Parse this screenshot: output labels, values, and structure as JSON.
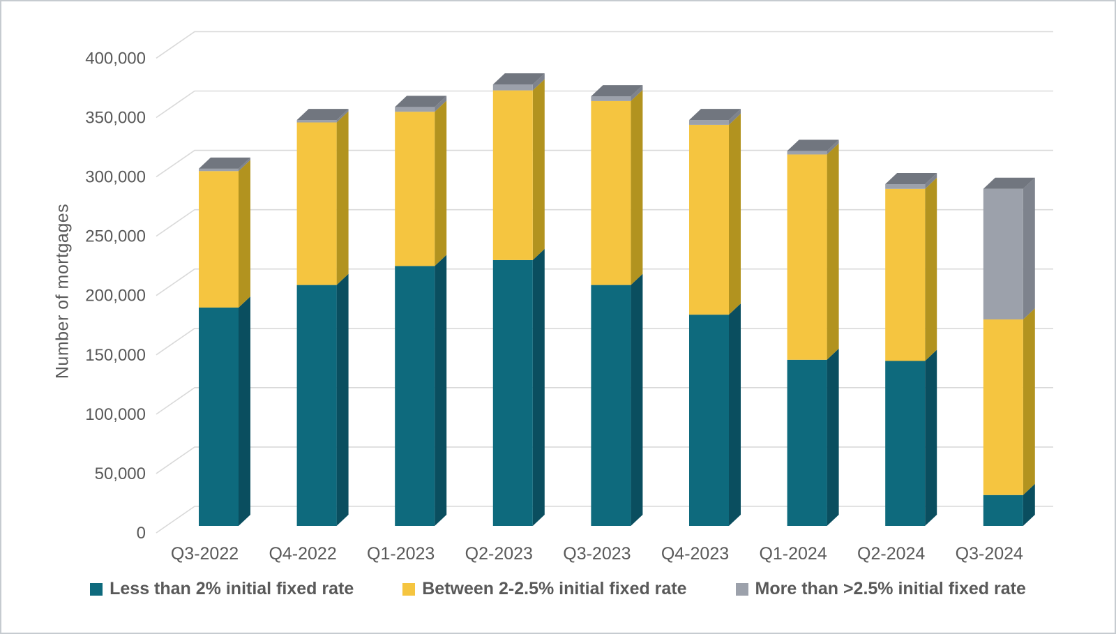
{
  "chart_data": {
    "type": "bar",
    "variant": "3d-stacked-column",
    "title": "",
    "xlabel": "",
    "ylabel": "Number of mortgages",
    "categories": [
      "Q3-2022",
      "Q4-2022",
      "Q1-2023",
      "Q2-2023",
      "Q3-2023",
      "Q4-2023",
      "Q1-2024",
      "Q2-2024",
      "Q3-2024"
    ],
    "series": [
      {
        "name": "Less than 2% initial fixed rate",
        "color": "#0E6A7D",
        "side_color": "#0A4E5F",
        "top_color": "#12809A",
        "values": [
          184000,
          203000,
          219000,
          224000,
          203000,
          178000,
          140000,
          139000,
          26000
        ]
      },
      {
        "name": "Between 2-2.5% initial fixed rate",
        "color": "#F5C540",
        "side_color": "#B2931F",
        "top_color": "#F7D35E",
        "values": [
          115000,
          137000,
          130000,
          143000,
          155000,
          160000,
          173000,
          145000,
          148000
        ]
      },
      {
        "name": "More than >2.5% initial fixed rate",
        "color": "#9CA1AB",
        "side_color": "#7E838D",
        "top_color": "#71767F",
        "values": [
          2000,
          2000,
          4000,
          5000,
          4000,
          4000,
          3000,
          4000,
          110000
        ]
      }
    ],
    "ylim": [
      0,
      400000
    ],
    "ytick_step": 50000,
    "ytick_labels": [
      "0",
      "50,000",
      "100,000",
      "150,000",
      "200,000",
      "250,000",
      "300,000",
      "350,000",
      "400,000"
    ],
    "grid": true,
    "legend_position": "bottom",
    "axis_text_color": "#595959",
    "grid_color": "#D9D9D9",
    "background": "#FFFFFF"
  }
}
